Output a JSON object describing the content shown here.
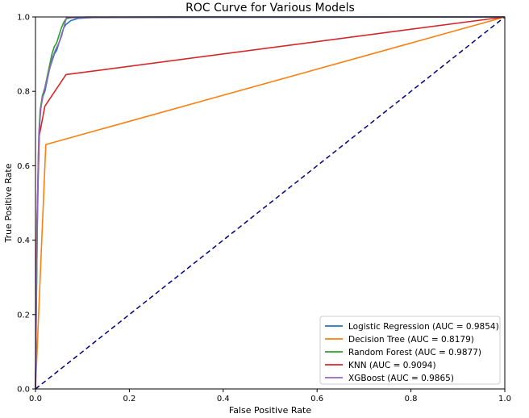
{
  "chart_data": {
    "type": "line",
    "title": "ROC Curve for Various Models",
    "xlabel": "False Positive Rate",
    "ylabel": "True Positive Rate",
    "xlim": [
      0,
      1
    ],
    "ylim": [
      0,
      1
    ],
    "xticks": [
      "0.0",
      "0.2",
      "0.4",
      "0.6",
      "0.8",
      "1.0"
    ],
    "yticks": [
      "0.0",
      "0.2",
      "0.4",
      "0.6",
      "0.8",
      "1.0"
    ],
    "grid": false,
    "legend_position": "lower-right",
    "series": [
      {
        "name": "Logistic Regression (AUC = 0.9854)",
        "color": "#1f77b4",
        "points": [
          [
            0,
            0
          ],
          [
            0.002,
            0.25
          ],
          [
            0.004,
            0.45
          ],
          [
            0.006,
            0.58
          ],
          [
            0.008,
            0.68
          ],
          [
            0.01,
            0.74
          ],
          [
            0.014,
            0.78
          ],
          [
            0.02,
            0.8
          ],
          [
            0.025,
            0.83
          ],
          [
            0.03,
            0.86
          ],
          [
            0.035,
            0.88
          ],
          [
            0.04,
            0.9
          ],
          [
            0.045,
            0.91
          ],
          [
            0.05,
            0.93
          ],
          [
            0.055,
            0.95
          ],
          [
            0.06,
            0.97
          ],
          [
            0.065,
            0.98
          ],
          [
            0.075,
            0.99
          ],
          [
            0.09,
            0.996
          ],
          [
            0.13,
            0.999
          ],
          [
            0.28,
            1.0
          ],
          [
            1.0,
            1.0
          ]
        ]
      },
      {
        "name": "Decision Tree (AUC = 0.8179)",
        "color": "#ff7f0e",
        "points": [
          [
            0,
            0
          ],
          [
            0.022,
            0.657
          ],
          [
            1.0,
            1.0
          ]
        ]
      },
      {
        "name": "Random Forest (AUC = 0.9877)",
        "color": "#2ca02c",
        "points": [
          [
            0,
            0
          ],
          [
            0.003,
            0.35
          ],
          [
            0.005,
            0.55
          ],
          [
            0.007,
            0.68
          ],
          [
            0.01,
            0.75
          ],
          [
            0.015,
            0.79
          ],
          [
            0.02,
            0.81
          ],
          [
            0.025,
            0.84
          ],
          [
            0.03,
            0.87
          ],
          [
            0.035,
            0.9
          ],
          [
            0.04,
            0.92
          ],
          [
            0.045,
            0.93
          ],
          [
            0.05,
            0.95
          ],
          [
            0.055,
            0.97
          ],
          [
            0.06,
            0.985
          ],
          [
            0.065,
            0.995
          ],
          [
            0.08,
            0.999
          ],
          [
            0.12,
            1.0
          ],
          [
            1.0,
            1.0
          ]
        ]
      },
      {
        "name": "KNN (AUC = 0.9094)",
        "color": "#d62728",
        "points": [
          [
            0,
            0
          ],
          [
            0.003,
            0.45
          ],
          [
            0.008,
            0.68
          ],
          [
            0.02,
            0.76
          ],
          [
            0.065,
            0.845
          ],
          [
            1.0,
            1.0
          ]
        ]
      },
      {
        "name": "XGBoost (AUC = 0.9865)",
        "color": "#9467bd",
        "points": [
          [
            0,
            0
          ],
          [
            0.002,
            0.3
          ],
          [
            0.004,
            0.5
          ],
          [
            0.006,
            0.62
          ],
          [
            0.008,
            0.7
          ],
          [
            0.012,
            0.76
          ],
          [
            0.018,
            0.8
          ],
          [
            0.024,
            0.83
          ],
          [
            0.03,
            0.86
          ],
          [
            0.036,
            0.89
          ],
          [
            0.042,
            0.91
          ],
          [
            0.05,
            0.93
          ],
          [
            0.056,
            0.95
          ],
          [
            0.062,
            0.98
          ],
          [
            0.066,
            0.998
          ],
          [
            1.0,
            1.0
          ]
        ]
      }
    ],
    "reference_line": {
      "color": "#000080",
      "points": [
        [
          0,
          0
        ],
        [
          1,
          1
        ]
      ]
    }
  }
}
